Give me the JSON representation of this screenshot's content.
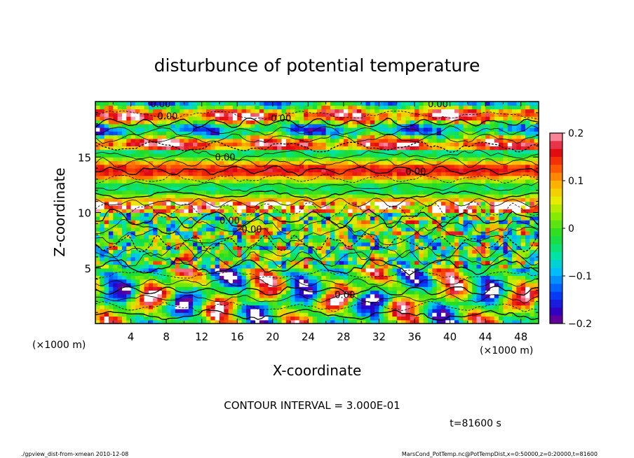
{
  "chart_data": {
    "type": "heatmap",
    "title": "disturbunce of potential temperature",
    "xlabel": "X-coordinate",
    "ylabel": "Z-coordinate",
    "x_unit_left": "(×1000 m)",
    "x_unit_right": "(×1000 m)",
    "xlim": [
      0,
      50
    ],
    "ylim": [
      0,
      20
    ],
    "x_ticks": [
      4,
      8,
      12,
      16,
      20,
      24,
      28,
      32,
      36,
      40,
      44,
      48
    ],
    "y_ticks": [
      5,
      10,
      15
    ],
    "x_tick_labels": [
      "4",
      "8",
      "12",
      "16",
      "20",
      "24",
      "28",
      "32",
      "36",
      "40",
      "44",
      "48"
    ],
    "y_tick_labels": [
      "5",
      "10",
      "15"
    ],
    "colorbar": {
      "range": [
        -0.2,
        0.2
      ],
      "ticks": [
        0.2,
        0.1,
        0,
        -0.1,
        -0.2
      ],
      "tick_labels": [
        "0.2",
        "0.1",
        "0",
        "−0.1",
        "−0.2"
      ]
    },
    "contour_labels": [
      "0.00",
      "0.00",
      "0.00",
      "0.00",
      "0.00",
      "0.00",
      "0.00",
      "0.00",
      "0.00"
    ],
    "contour_interval_text": "CONTOUR INTERVAL = 3.000E-01",
    "time_text": "t=81600 s",
    "footer_left": "./gpview_dist-from-xmean   2010-12-08",
    "footer_right": "MarsCond_PotTemp.nc@PotTempDist,x=0:50000,z=0:20000,t=81600",
    "grid": false,
    "legend_position": "right"
  }
}
